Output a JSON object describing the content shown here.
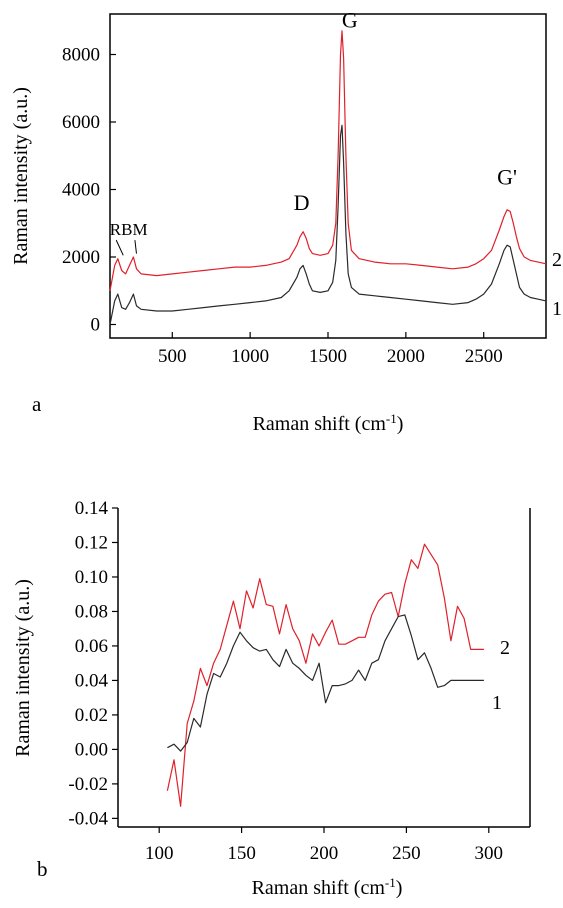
{
  "colors": {
    "series_2": "#e0202a",
    "series_1": "#2a2a2a",
    "axis": "#000000"
  },
  "chart_data": [
    {
      "type": "line",
      "panel_label": "a",
      "xlabel": "Raman shift (cm",
      "xlabel_sup": "-1",
      "xlabel_end": ")",
      "ylabel": "Raman intensity (a.u.)",
      "xlim": [
        100,
        2900
      ],
      "ylim": [
        -400,
        9200
      ],
      "x_ticks": [
        500,
        1000,
        1500,
        2000,
        2500
      ],
      "y_ticks": [
        0,
        2000,
        4000,
        6000,
        8000
      ],
      "x_tick_labels": [
        "500",
        "1000",
        "1500",
        "2000",
        "2500"
      ],
      "y_tick_labels": [
        "0",
        "2000",
        "4000",
        "6000",
        "8000"
      ],
      "grid": false,
      "annotations": [
        {
          "text": "RBM",
          "x": 220,
          "y": 2650
        },
        {
          "text": "D",
          "x": 1330,
          "y": 3400
        },
        {
          "text": "G",
          "x": 1640,
          "y": 8800
        },
        {
          "text": "G'",
          "x": 2650,
          "y": 4150
        }
      ],
      "series": [
        {
          "name": "2",
          "color": "#e0202a",
          "x": [
            100,
            130,
            150,
            175,
            200,
            225,
            250,
            270,
            300,
            400,
            500,
            600,
            700,
            800,
            900,
            1000,
            1100,
            1200,
            1250,
            1300,
            1320,
            1340,
            1360,
            1380,
            1400,
            1450,
            1500,
            1530,
            1550,
            1565,
            1580,
            1590,
            1600,
            1615,
            1630,
            1650,
            1700,
            1800,
            1900,
            2000,
            2100,
            2200,
            2300,
            2400,
            2450,
            2500,
            2550,
            2600,
            2630,
            2650,
            2670,
            2690,
            2710,
            2730,
            2760,
            2800,
            2850,
            2900
          ],
          "y": [
            1000,
            1750,
            1950,
            1600,
            1500,
            1750,
            2000,
            1650,
            1500,
            1450,
            1500,
            1550,
            1600,
            1650,
            1700,
            1700,
            1750,
            1850,
            1950,
            2350,
            2600,
            2750,
            2550,
            2250,
            2100,
            2050,
            2100,
            2350,
            3000,
            5000,
            8000,
            8700,
            7900,
            5000,
            3000,
            2200,
            1950,
            1850,
            1800,
            1800,
            1750,
            1700,
            1650,
            1700,
            1800,
            1950,
            2200,
            2800,
            3200,
            3400,
            3350,
            3000,
            2600,
            2250,
            2000,
            1900,
            1850,
            1800
          ]
        },
        {
          "name": "1",
          "color": "#2a2a2a",
          "x": [
            100,
            130,
            150,
            175,
            200,
            225,
            250,
            270,
            300,
            400,
            500,
            600,
            700,
            800,
            900,
            1000,
            1100,
            1200,
            1250,
            1300,
            1320,
            1340,
            1360,
            1380,
            1400,
            1450,
            1500,
            1530,
            1550,
            1565,
            1580,
            1590,
            1600,
            1615,
            1630,
            1650,
            1700,
            1800,
            1900,
            2000,
            2100,
            2200,
            2300,
            2400,
            2450,
            2500,
            2550,
            2600,
            2630,
            2650,
            2670,
            2690,
            2710,
            2730,
            2760,
            2800,
            2850,
            2900
          ],
          "y": [
            0,
            700,
            900,
            500,
            450,
            650,
            900,
            550,
            450,
            400,
            400,
            450,
            500,
            550,
            600,
            650,
            700,
            800,
            1000,
            1400,
            1650,
            1750,
            1500,
            1200,
            1000,
            950,
            1000,
            1250,
            1900,
            3500,
            5600,
            5900,
            4800,
            2700,
            1500,
            1100,
            900,
            850,
            800,
            750,
            700,
            650,
            600,
            650,
            750,
            900,
            1200,
            1800,
            2200,
            2350,
            2300,
            1900,
            1500,
            1100,
            900,
            800,
            750,
            700
          ]
        }
      ]
    },
    {
      "type": "line",
      "panel_label": "b",
      "xlabel": "Raman shift (cm",
      "xlabel_sup": "-1",
      "xlabel_end": ")",
      "ylabel": "Raman intensity (a.u.)",
      "xlim": [
        75,
        325
      ],
      "ylim": [
        -0.045,
        0.14
      ],
      "x_ticks": [
        100,
        150,
        200,
        250,
        300
      ],
      "y_ticks": [
        -0.04,
        -0.02,
        0.0,
        0.02,
        0.04,
        0.06,
        0.08,
        0.1,
        0.12,
        0.14
      ],
      "x_tick_labels": [
        "100",
        "150",
        "200",
        "250",
        "300"
      ],
      "y_tick_labels": [
        "-0.04",
        "-0.02",
        "0.00",
        "0.02",
        "0.04",
        "0.06",
        "0.08",
        "0.10",
        "0.12",
        "0.14"
      ],
      "grid": false,
      "series": [
        {
          "name": "2",
          "color": "#e0202a",
          "x": [
            105,
            109,
            113,
            117,
            121,
            125,
            129,
            133,
            137,
            141,
            145,
            149,
            153,
            157,
            161,
            165,
            169,
            173,
            177,
            181,
            185,
            189,
            193,
            197,
            201,
            205,
            209,
            213,
            217,
            221,
            225,
            229,
            233,
            237,
            241,
            245,
            249,
            253,
            257,
            261,
            265,
            269,
            273,
            277,
            281,
            285,
            289,
            293,
            297
          ],
          "y": [
            -0.024,
            -0.006,
            -0.033,
            0.015,
            0.028,
            0.047,
            0.037,
            0.05,
            0.058,
            0.072,
            0.086,
            0.07,
            0.092,
            0.082,
            0.099,
            0.084,
            0.083,
            0.067,
            0.084,
            0.07,
            0.063,
            0.05,
            0.067,
            0.06,
            0.068,
            0.075,
            0.061,
            0.061,
            0.063,
            0.065,
            0.065,
            0.078,
            0.086,
            0.09,
            0.091,
            0.077,
            0.096,
            0.11,
            0.105,
            0.119,
            0.113,
            0.107,
            0.088,
            0.063,
            0.083,
            0.076,
            0.058,
            0.058,
            0.058
          ]
        },
        {
          "name": "1",
          "color": "#2a2a2a",
          "x": [
            105,
            109,
            113,
            117,
            121,
            125,
            129,
            133,
            137,
            141,
            145,
            149,
            153,
            157,
            161,
            165,
            169,
            173,
            177,
            181,
            185,
            189,
            193,
            197,
            201,
            205,
            209,
            213,
            217,
            221,
            225,
            229,
            233,
            237,
            241,
            245,
            249,
            253,
            257,
            261,
            265,
            269,
            273,
            277,
            281,
            285,
            289,
            293,
            297
          ],
          "y": [
            0.001,
            0.003,
            -0.001,
            0.004,
            0.018,
            0.013,
            0.032,
            0.044,
            0.042,
            0.05,
            0.06,
            0.068,
            0.063,
            0.059,
            0.057,
            0.058,
            0.052,
            0.048,
            0.058,
            0.05,
            0.047,
            0.043,
            0.04,
            0.05,
            0.027,
            0.037,
            0.037,
            0.038,
            0.04,
            0.046,
            0.04,
            0.05,
            0.052,
            0.063,
            0.07,
            0.077,
            0.078,
            0.066,
            0.052,
            0.056,
            0.047,
            0.036,
            0.037,
            0.04,
            0.04,
            0.04,
            0.04,
            0.04,
            0.04
          ]
        }
      ]
    }
  ]
}
